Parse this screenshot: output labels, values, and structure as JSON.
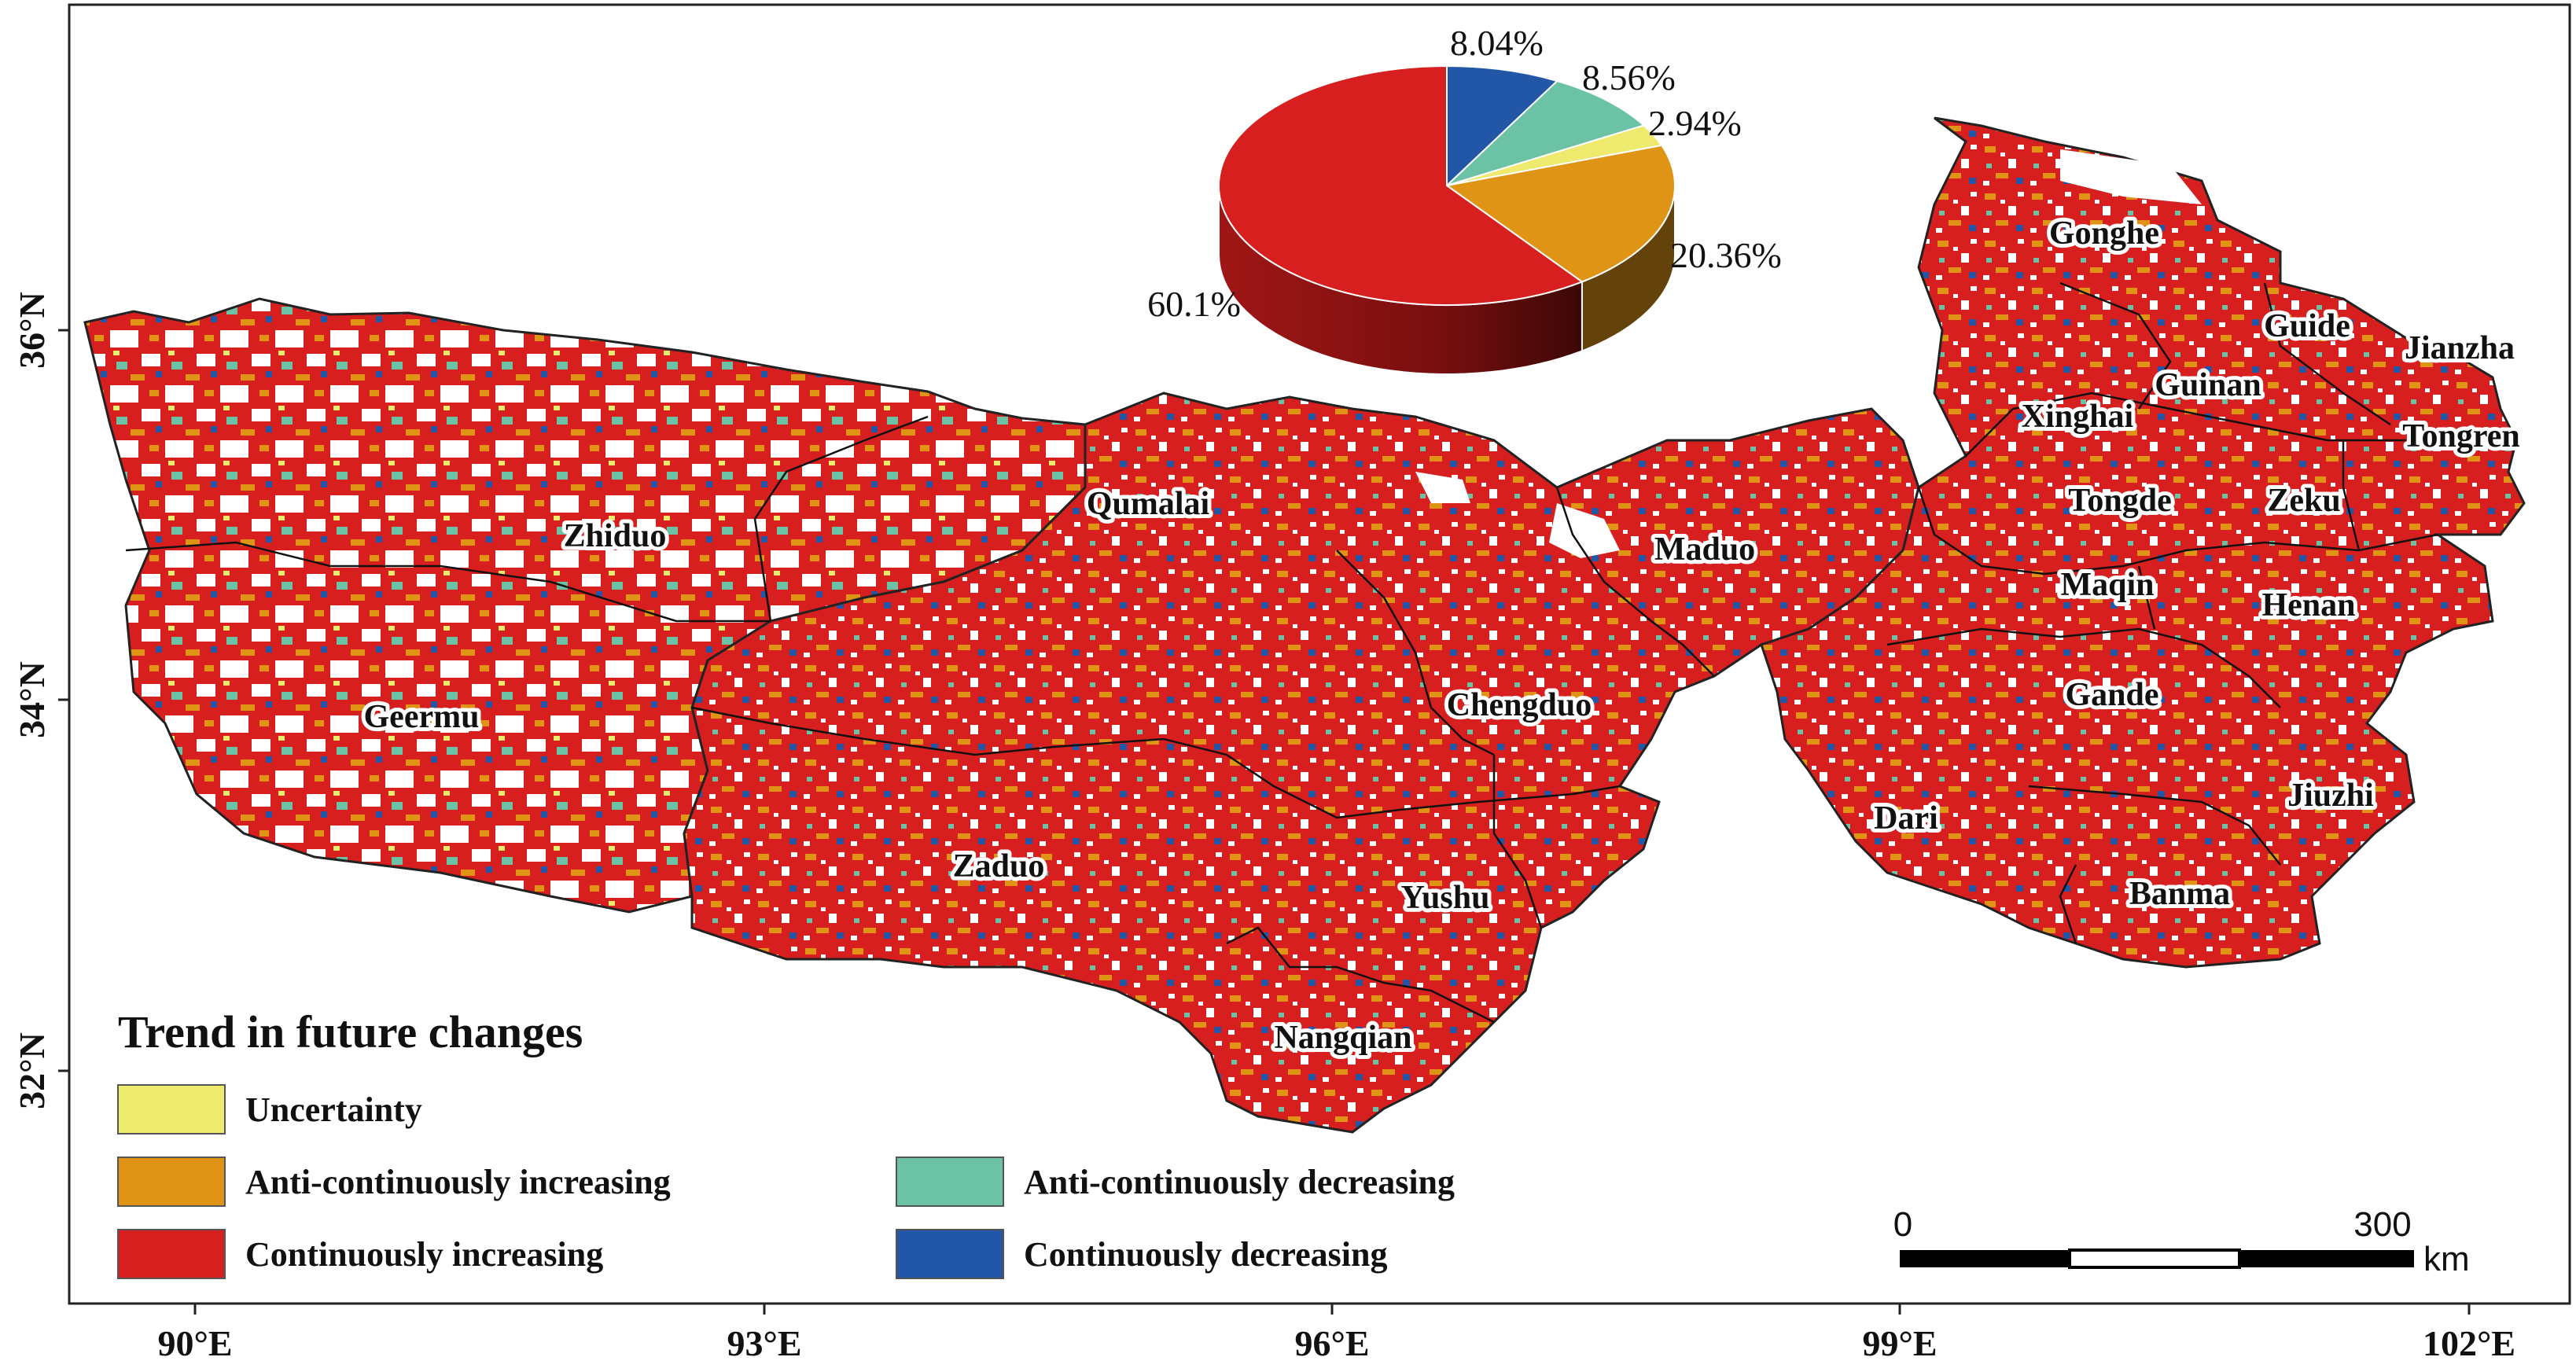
{
  "map": {
    "lon_ticks": [
      "90°E",
      "93°E",
      "96°E",
      "99°E",
      "102°E"
    ],
    "lat_ticks": [
      "36°N",
      "34°N",
      "32°N"
    ],
    "counties": [
      {
        "name": "Gonghe"
      },
      {
        "name": "Guide"
      },
      {
        "name": "Jianzha"
      },
      {
        "name": "Guinan"
      },
      {
        "name": "Xinghai"
      },
      {
        "name": "Tongren"
      },
      {
        "name": "Tongde"
      },
      {
        "name": "Zeku"
      },
      {
        "name": "Maduo"
      },
      {
        "name": "Maqin"
      },
      {
        "name": "Henan"
      },
      {
        "name": "Zhiduo"
      },
      {
        "name": "Qumalai"
      },
      {
        "name": "Geermu"
      },
      {
        "name": "Chengduo"
      },
      {
        "name": "Gande"
      },
      {
        "name": "Jiuzhi"
      },
      {
        "name": "Dari"
      },
      {
        "name": "Zaduo"
      },
      {
        "name": "Yushu"
      },
      {
        "name": "Banma"
      },
      {
        "name": "Nangqian"
      }
    ]
  },
  "chart_data": {
    "type": "pie",
    "style": "3d",
    "slices": [
      {
        "label": "8.04%",
        "value": 8.04,
        "color": "#2257a8",
        "class": "Continuously decreasing"
      },
      {
        "label": "8.56%",
        "value": 8.56,
        "color": "#6cc2a4",
        "class": "Anti-continuously decreasing"
      },
      {
        "label": "2.94%",
        "value": 2.94,
        "color": "#eeea6e",
        "class": "Uncertainty"
      },
      {
        "label": "20.36%",
        "value": 20.36,
        "color": "#df9416",
        "class": "Anti-continuously increasing"
      },
      {
        "label": "60.1%",
        "value": 60.1,
        "color": "#d81f1f",
        "class": "Continuously increasing"
      }
    ]
  },
  "legend": {
    "title": "Trend in future changes",
    "items": [
      {
        "label": "Uncertainty",
        "color": "#eeea6e"
      },
      {
        "label": "Anti-continuously increasing",
        "color": "#df9416"
      },
      {
        "label": "Continuously increasing",
        "color": "#d81f1f"
      },
      {
        "label": "Anti-continuously decreasing",
        "color": "#6cc2a4"
      },
      {
        "label": "Continuously decreasing",
        "color": "#2257a8"
      }
    ]
  },
  "scalebar": {
    "start": "0",
    "end": "300",
    "unit": "km"
  }
}
